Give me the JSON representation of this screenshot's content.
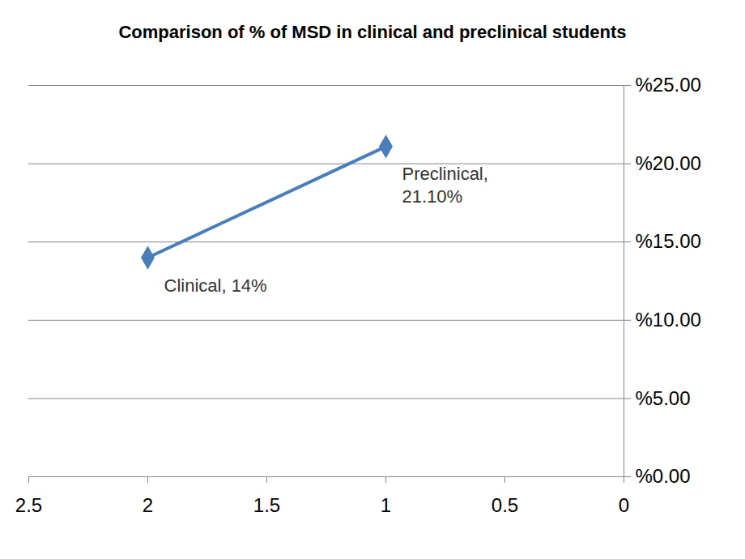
{
  "chart_data": {
    "type": "line",
    "title": "Comparison of % of MSD in clinical and preclinical students",
    "x": [
      2,
      1
    ],
    "values": [
      14,
      21.1
    ],
    "labels": [
      "Clinical, 14%",
      "Preclinical, 21.10%"
    ],
    "color": "#4a7ebb",
    "marker": "diamond",
    "xlim": [
      2.5,
      0
    ],
    "xticks": [
      2.5,
      2,
      1.5,
      1,
      0.5,
      0
    ],
    "ylim": [
      0,
      25
    ],
    "yticks": [
      {
        "value": 0,
        "label": "%0.00"
      },
      {
        "value": 5,
        "label": "%5.00"
      },
      {
        "value": 10,
        "label": "%10.00"
      },
      {
        "value": 15,
        "label": "%15.00"
      },
      {
        "value": 20,
        "label": "%20.00"
      },
      {
        "value": 25,
        "label": "%25.00"
      }
    ],
    "grid": true
  }
}
